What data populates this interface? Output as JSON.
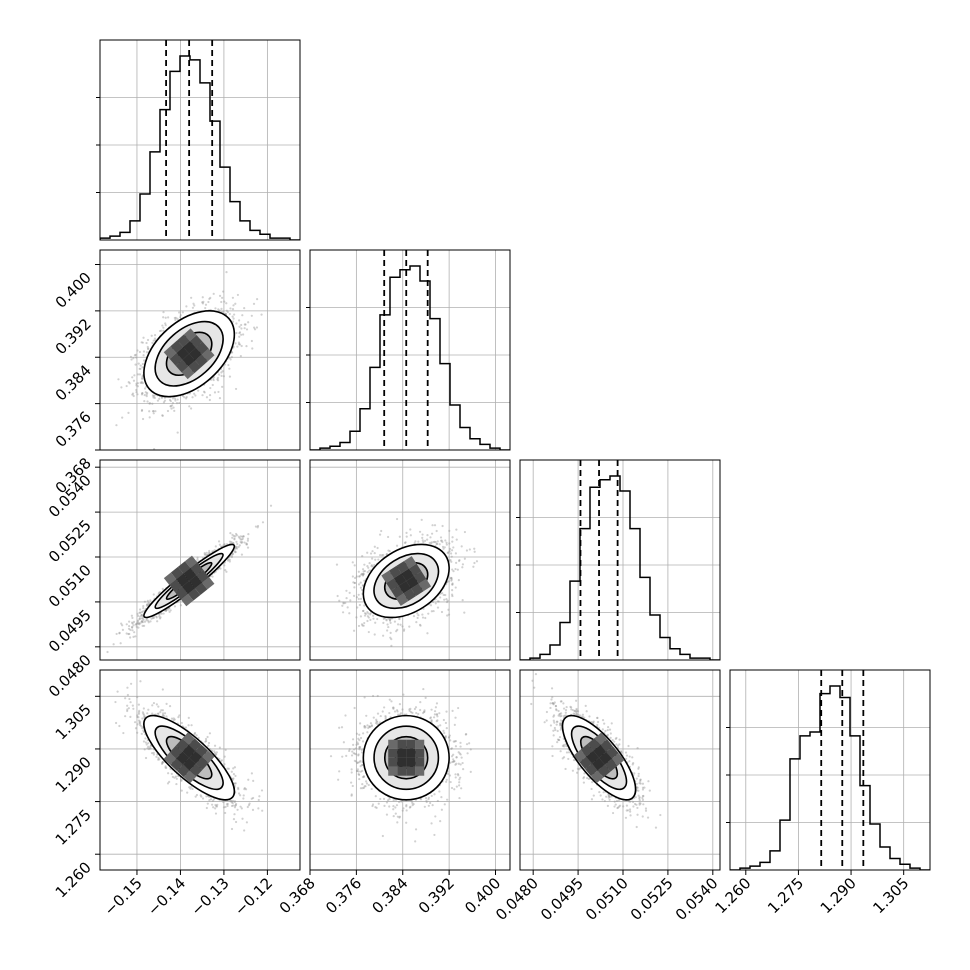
{
  "chart_data": {
    "type": "corner",
    "title": "",
    "grid": true,
    "parameters": [
      {
        "label": "",
        "range": [
          -0.1585,
          -0.1125
        ],
        "ticks": [
          -0.15,
          -0.14,
          -0.13,
          -0.12
        ],
        "tick_labels": [
          "−0.15",
          "−0.14",
          "−0.13",
          "−0.12"
        ],
        "quantiles": [
          -0.1433,
          -0.138,
          -0.1327
        ],
        "mean": -0.138,
        "sd": 0.0052
      },
      {
        "label": "",
        "range": [
          0.368,
          0.4025
        ],
        "ticks": [
          0.368,
          0.376,
          0.384,
          0.392,
          0.4
        ],
        "tick_labels": [
          "0.368",
          "0.376",
          "0.384",
          "0.392",
          "0.400"
        ],
        "quantiles": [
          0.3808,
          0.3846,
          0.3883
        ],
        "mean": 0.3846,
        "sd": 0.0037
      },
      {
        "label": "",
        "range": [
          0.04756,
          0.05424
        ],
        "ticks": [
          0.048,
          0.0495,
          0.051,
          0.0525,
          0.054
        ],
        "tick_labels": [
          "0.0480",
          "0.0495",
          "0.0510",
          "0.0525",
          "0.0540"
        ],
        "quantiles": [
          0.04958,
          0.0502,
          0.05082
        ],
        "mean": 0.0502,
        "sd": 0.00061
      },
      {
        "label": "",
        "range": [
          1.2555,
          1.3125
        ],
        "ticks": [
          1.26,
          1.275,
          1.29,
          1.305
        ],
        "tick_labels": [
          "1.260",
          "1.275",
          "1.290",
          "1.305"
        ],
        "quantiles": [
          1.2815,
          1.2875,
          1.2935
        ],
        "mean": 1.2875,
        "sd": 0.006
      }
    ],
    "histograms": [
      {
        "param_index": 0,
        "values": [
          1,
          2,
          4,
          10,
          24,
          46,
          68,
          88,
          96,
          94,
          82,
          62,
          38,
          20,
          10,
          5,
          3,
          1,
          1,
          0
        ]
      },
      {
        "param_index": 1,
        "values": [
          0,
          1,
          2,
          4,
          10,
          22,
          44,
          72,
          92,
          96,
          98,
          90,
          70,
          46,
          24,
          12,
          6,
          3,
          1,
          0
        ]
      },
      {
        "param_index": 2,
        "values": [
          0,
          1,
          3,
          8,
          20,
          42,
          70,
          92,
          96,
          98,
          90,
          70,
          44,
          24,
          12,
          6,
          3,
          1,
          1,
          0
        ]
      },
      {
        "param_index": 3,
        "values": [
          0,
          1,
          2,
          4,
          10,
          26,
          58,
          70,
          72,
          92,
          96,
          90,
          70,
          44,
          24,
          12,
          6,
          3,
          1,
          0
        ]
      }
    ],
    "pairs": [
      {
        "x_param": 0,
        "y_param": 1,
        "correlation": 0.45
      },
      {
        "x_param": 0,
        "y_param": 2,
        "correlation": 0.95
      },
      {
        "x_param": 1,
        "y_param": 2,
        "correlation": 0.35
      },
      {
        "x_param": 0,
        "y_param": 3,
        "correlation": -0.8
      },
      {
        "x_param": 1,
        "y_param": 3,
        "correlation": 0.0
      },
      {
        "x_param": 2,
        "y_param": 3,
        "correlation": -0.75
      }
    ],
    "contour_levels_sigma": [
      0.5,
      1.0,
      1.5,
      2.0
    ]
  }
}
